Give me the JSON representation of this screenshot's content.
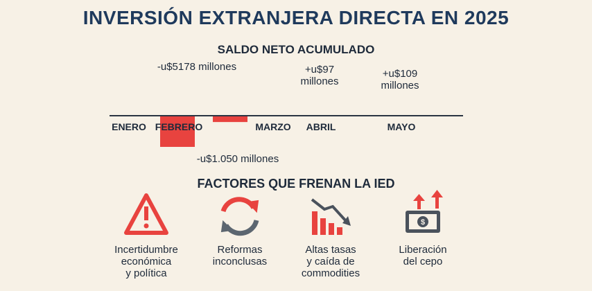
{
  "title": "INVERSIÓN EXTRANJERA DIRECTA EN 2025",
  "chart_data": {
    "type": "bar",
    "title": "SALDO NETO ACUMULADO",
    "categories": [
      "ENERO",
      "FEBRERO",
      "MARZO",
      "ABRIL",
      "MAYO"
    ],
    "values": [
      null,
      -5178,
      -1050,
      97,
      109
    ],
    "value_labels": [
      null,
      "-u$5178 millones",
      "-u$1.050 millones",
      "+u$97 millones",
      "+u$109 millones"
    ],
    "colors": {
      "negative": "#e8433f",
      "positive": "#4db57a"
    }
  },
  "factors": {
    "title": "FACTORES QUE FRENAN LA IED",
    "items": [
      {
        "lines": [
          "Incertidumbre",
          "económica",
          "y política"
        ]
      },
      {
        "lines": [
          "Reformas",
          "inconclusas"
        ]
      },
      {
        "lines": [
          "Altas tasas",
          "y caída de",
          "commodities"
        ]
      },
      {
        "lines": [
          "Liberación",
          "del cepo"
        ]
      }
    ]
  }
}
